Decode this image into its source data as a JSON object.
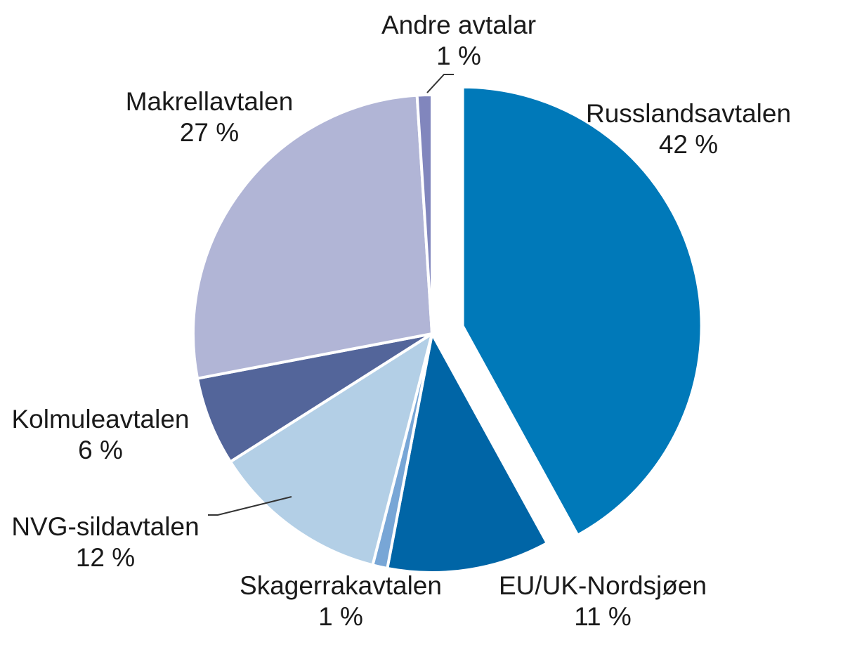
{
  "chart_data": {
    "type": "pie",
    "title": "",
    "start_angle_deg": 0,
    "direction": "clockwise",
    "slices": [
      {
        "label": "Russlandsavtalen",
        "value": 42,
        "value_label": "42 %",
        "color": "#0079b9",
        "exploded": true
      },
      {
        "label": "EU/UK-Nordsjøen",
        "value": 11,
        "value_label": "11 %",
        "color": "#0065a6",
        "exploded": false
      },
      {
        "label": "Skagerrakavtalen",
        "value": 1,
        "value_label": "1 %",
        "color": "#78a6d6",
        "exploded": false
      },
      {
        "label": "NVG-sildavtalen",
        "value": 12,
        "value_label": "12 %",
        "color": "#b3cfe6",
        "exploded": false
      },
      {
        "label": "Kolmuleavtalen",
        "value": 6,
        "value_label": "6 %",
        "color": "#53659a",
        "exploded": false
      },
      {
        "label": "Makrellavtalen",
        "value": 27,
        "value_label": "27 %",
        "color": "#b1b5d6",
        "exploded": false
      },
      {
        "label": "Andre avtalar",
        "value": 1,
        "value_label": "1 %",
        "color": "#8186bd",
        "exploded": false
      }
    ]
  }
}
